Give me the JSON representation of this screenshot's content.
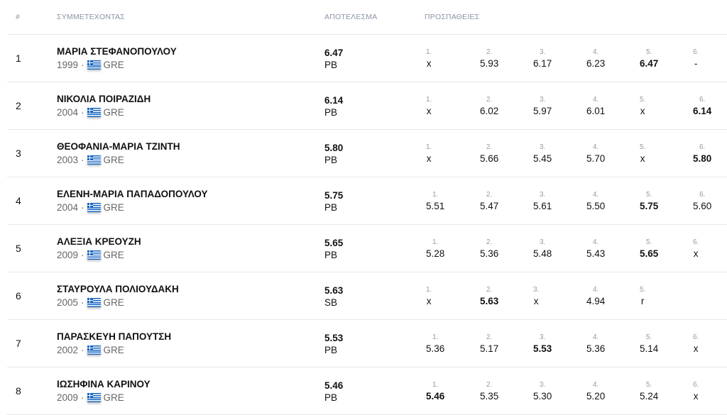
{
  "header": {
    "rank": "#",
    "athlete": "ΣΥΜΜΕΤΕΧΟΝΤΑΣ",
    "result": "ΑΠΟΤΕΛΕΣΜΑ",
    "attempts": "ΠΡΟΣΠΑΘΕΙΕΣ"
  },
  "flag_colors": {
    "blue": "#1565c0",
    "white": "#ffffff"
  },
  "rows": [
    {
      "rank": "1",
      "name": "ΜΑΡΙΑ ΣΤΕΦΑΝΟΠΟΥΛΟΥ",
      "year": "1999",
      "country": "GRE",
      "result": "6.47",
      "note": "PB",
      "attempts": [
        {
          "n": "1.",
          "v": "x"
        },
        {
          "n": "2.",
          "v": "5.93"
        },
        {
          "n": "3.",
          "v": "6.17"
        },
        {
          "n": "4.",
          "v": "6.23"
        },
        {
          "n": "5.",
          "v": "6.47",
          "best": true
        },
        {
          "n": "6.",
          "v": "-"
        }
      ]
    },
    {
      "rank": "2",
      "name": "ΝΙΚΟΛΙΑ ΠΟΙΡΑΖΙΔΗ",
      "year": "2004",
      "country": "GRE",
      "result": "6.14",
      "note": "PB",
      "attempts": [
        {
          "n": "1.",
          "v": "x"
        },
        {
          "n": "2.",
          "v": "6.02"
        },
        {
          "n": "3.",
          "v": "5.97"
        },
        {
          "n": "4.",
          "v": "6.01"
        },
        {
          "n": "5.",
          "v": "x"
        },
        {
          "n": "6.",
          "v": "6.14",
          "best": true
        }
      ]
    },
    {
      "rank": "3",
      "name": "ΘΕΟΦΑΝΙΑ-ΜΑΡΙΑ ΤΖΙΝΤΗ",
      "year": "2003",
      "country": "GRE",
      "result": "5.80",
      "note": "PB",
      "attempts": [
        {
          "n": "1.",
          "v": "x"
        },
        {
          "n": "2.",
          "v": "5.66"
        },
        {
          "n": "3.",
          "v": "5.45"
        },
        {
          "n": "4.",
          "v": "5.70"
        },
        {
          "n": "5.",
          "v": "x"
        },
        {
          "n": "6.",
          "v": "5.80",
          "best": true
        }
      ]
    },
    {
      "rank": "4",
      "name": "ΕΛΕΝΗ-ΜΑΡΙΑ ΠΑΠΑΔΟΠΟΥΛΟΥ",
      "year": "2004",
      "country": "GRE",
      "result": "5.75",
      "note": "PB",
      "attempts": [
        {
          "n": "1.",
          "v": "5.51"
        },
        {
          "n": "2.",
          "v": "5.47"
        },
        {
          "n": "3.",
          "v": "5.61"
        },
        {
          "n": "4.",
          "v": "5.50"
        },
        {
          "n": "5.",
          "v": "5.75",
          "best": true
        },
        {
          "n": "6.",
          "v": "5.60"
        }
      ]
    },
    {
      "rank": "5",
      "name": "ΑΛΕΞΙΑ ΚΡΕΟΥΖΗ",
      "year": "2009",
      "country": "GRE",
      "result": "5.65",
      "note": "PB",
      "attempts": [
        {
          "n": "1.",
          "v": "5.28"
        },
        {
          "n": "2.",
          "v": "5.36"
        },
        {
          "n": "3.",
          "v": "5.48"
        },
        {
          "n": "4.",
          "v": "5.43"
        },
        {
          "n": "5.",
          "v": "5.65",
          "best": true
        },
        {
          "n": "6.",
          "v": "x"
        }
      ]
    },
    {
      "rank": "6",
      "name": "ΣΤΑΥΡΟΥΛΑ ΠΟΛΙΟΥΔΑΚΗ",
      "year": "2005",
      "country": "GRE",
      "result": "5.63",
      "note": "SB",
      "attempts": [
        {
          "n": "1.",
          "v": "x"
        },
        {
          "n": "2.",
          "v": "5.63",
          "best": true
        },
        {
          "n": "3.",
          "v": "x"
        },
        {
          "n": "4.",
          "v": "4.94"
        },
        {
          "n": "5.",
          "v": "r"
        }
      ]
    },
    {
      "rank": "7",
      "name": "ΠΑΡΑΣΚΕΥΗ ΠΑΠΟΥΤΣΗ",
      "year": "2002",
      "country": "GRE",
      "result": "5.53",
      "note": "PB",
      "attempts": [
        {
          "n": "1.",
          "v": "5.36"
        },
        {
          "n": "2.",
          "v": "5.17"
        },
        {
          "n": "3.",
          "v": "5.53",
          "best": true
        },
        {
          "n": "4.",
          "v": "5.36"
        },
        {
          "n": "5.",
          "v": "5.14"
        },
        {
          "n": "6.",
          "v": "x"
        }
      ]
    },
    {
      "rank": "8",
      "name": "ΙΩΣΗΦΙΝΑ ΚΑΡΙΝΟΥ",
      "year": "2009",
      "country": "GRE",
      "result": "5.46",
      "note": "PB",
      "attempts": [
        {
          "n": "1.",
          "v": "5.46",
          "best": true
        },
        {
          "n": "2.",
          "v": "5.35"
        },
        {
          "n": "3.",
          "v": "5.30"
        },
        {
          "n": "4.",
          "v": "5.20"
        },
        {
          "n": "5.",
          "v": "5.24"
        },
        {
          "n": "6.",
          "v": "x"
        }
      ]
    }
  ]
}
